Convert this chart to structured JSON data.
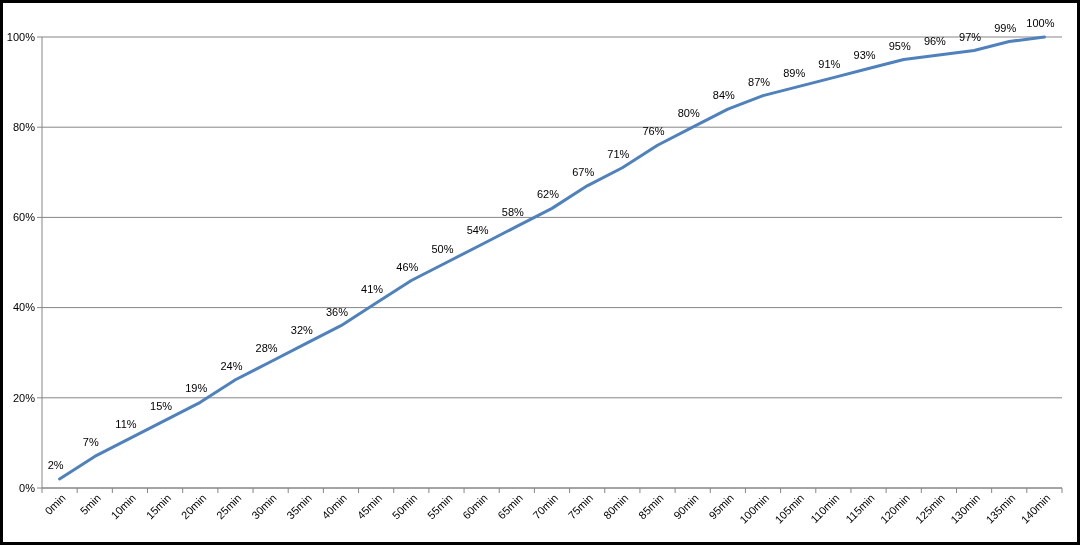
{
  "chart_data": {
    "type": "line",
    "categories": [
      "0min",
      "5min",
      "10min",
      "15min",
      "20min",
      "25min",
      "30min",
      "35min",
      "40min",
      "45min",
      "50min",
      "55min",
      "60min",
      "65min",
      "70min",
      "75min",
      "80min",
      "85min",
      "90min",
      "95min",
      "100min",
      "105min",
      "110min",
      "115min",
      "120min",
      "125min",
      "130min",
      "135min",
      "140min"
    ],
    "series": [
      {
        "color": "#4f81bd",
        "values": [
          2,
          7,
          11,
          15,
          19,
          24,
          28,
          32,
          36,
          41,
          46,
          50,
          54,
          58,
          62,
          67,
          71,
          76,
          80,
          84,
          87,
          89,
          91,
          93,
          95,
          96,
          97,
          99,
          100
        ]
      }
    ],
    "ylim": [
      0,
      100
    ],
    "yticks": [
      {
        "value": 0,
        "label": "0%"
      },
      {
        "value": 20,
        "label": "20%"
      },
      {
        "value": 40,
        "label": "40%"
      },
      {
        "value": 60,
        "label": "60%"
      },
      {
        "value": 80,
        "label": "80%"
      },
      {
        "value": 100,
        "label": "100%"
      }
    ],
    "value_labels": [
      "2%",
      "7%",
      "11%",
      "15%",
      "19%",
      "24%",
      "28%",
      "32%",
      "36%",
      "41%",
      "46%",
      "50%",
      "54%",
      "58%",
      "62%",
      "67%",
      "71%",
      "76%",
      "80%",
      "84%",
      "87%",
      "89%",
      "91%",
      "93%",
      "95%",
      "96%",
      "97%",
      "99%",
      "100%"
    ],
    "grid": "y",
    "marker": "none",
    "line_style": "solid"
  }
}
